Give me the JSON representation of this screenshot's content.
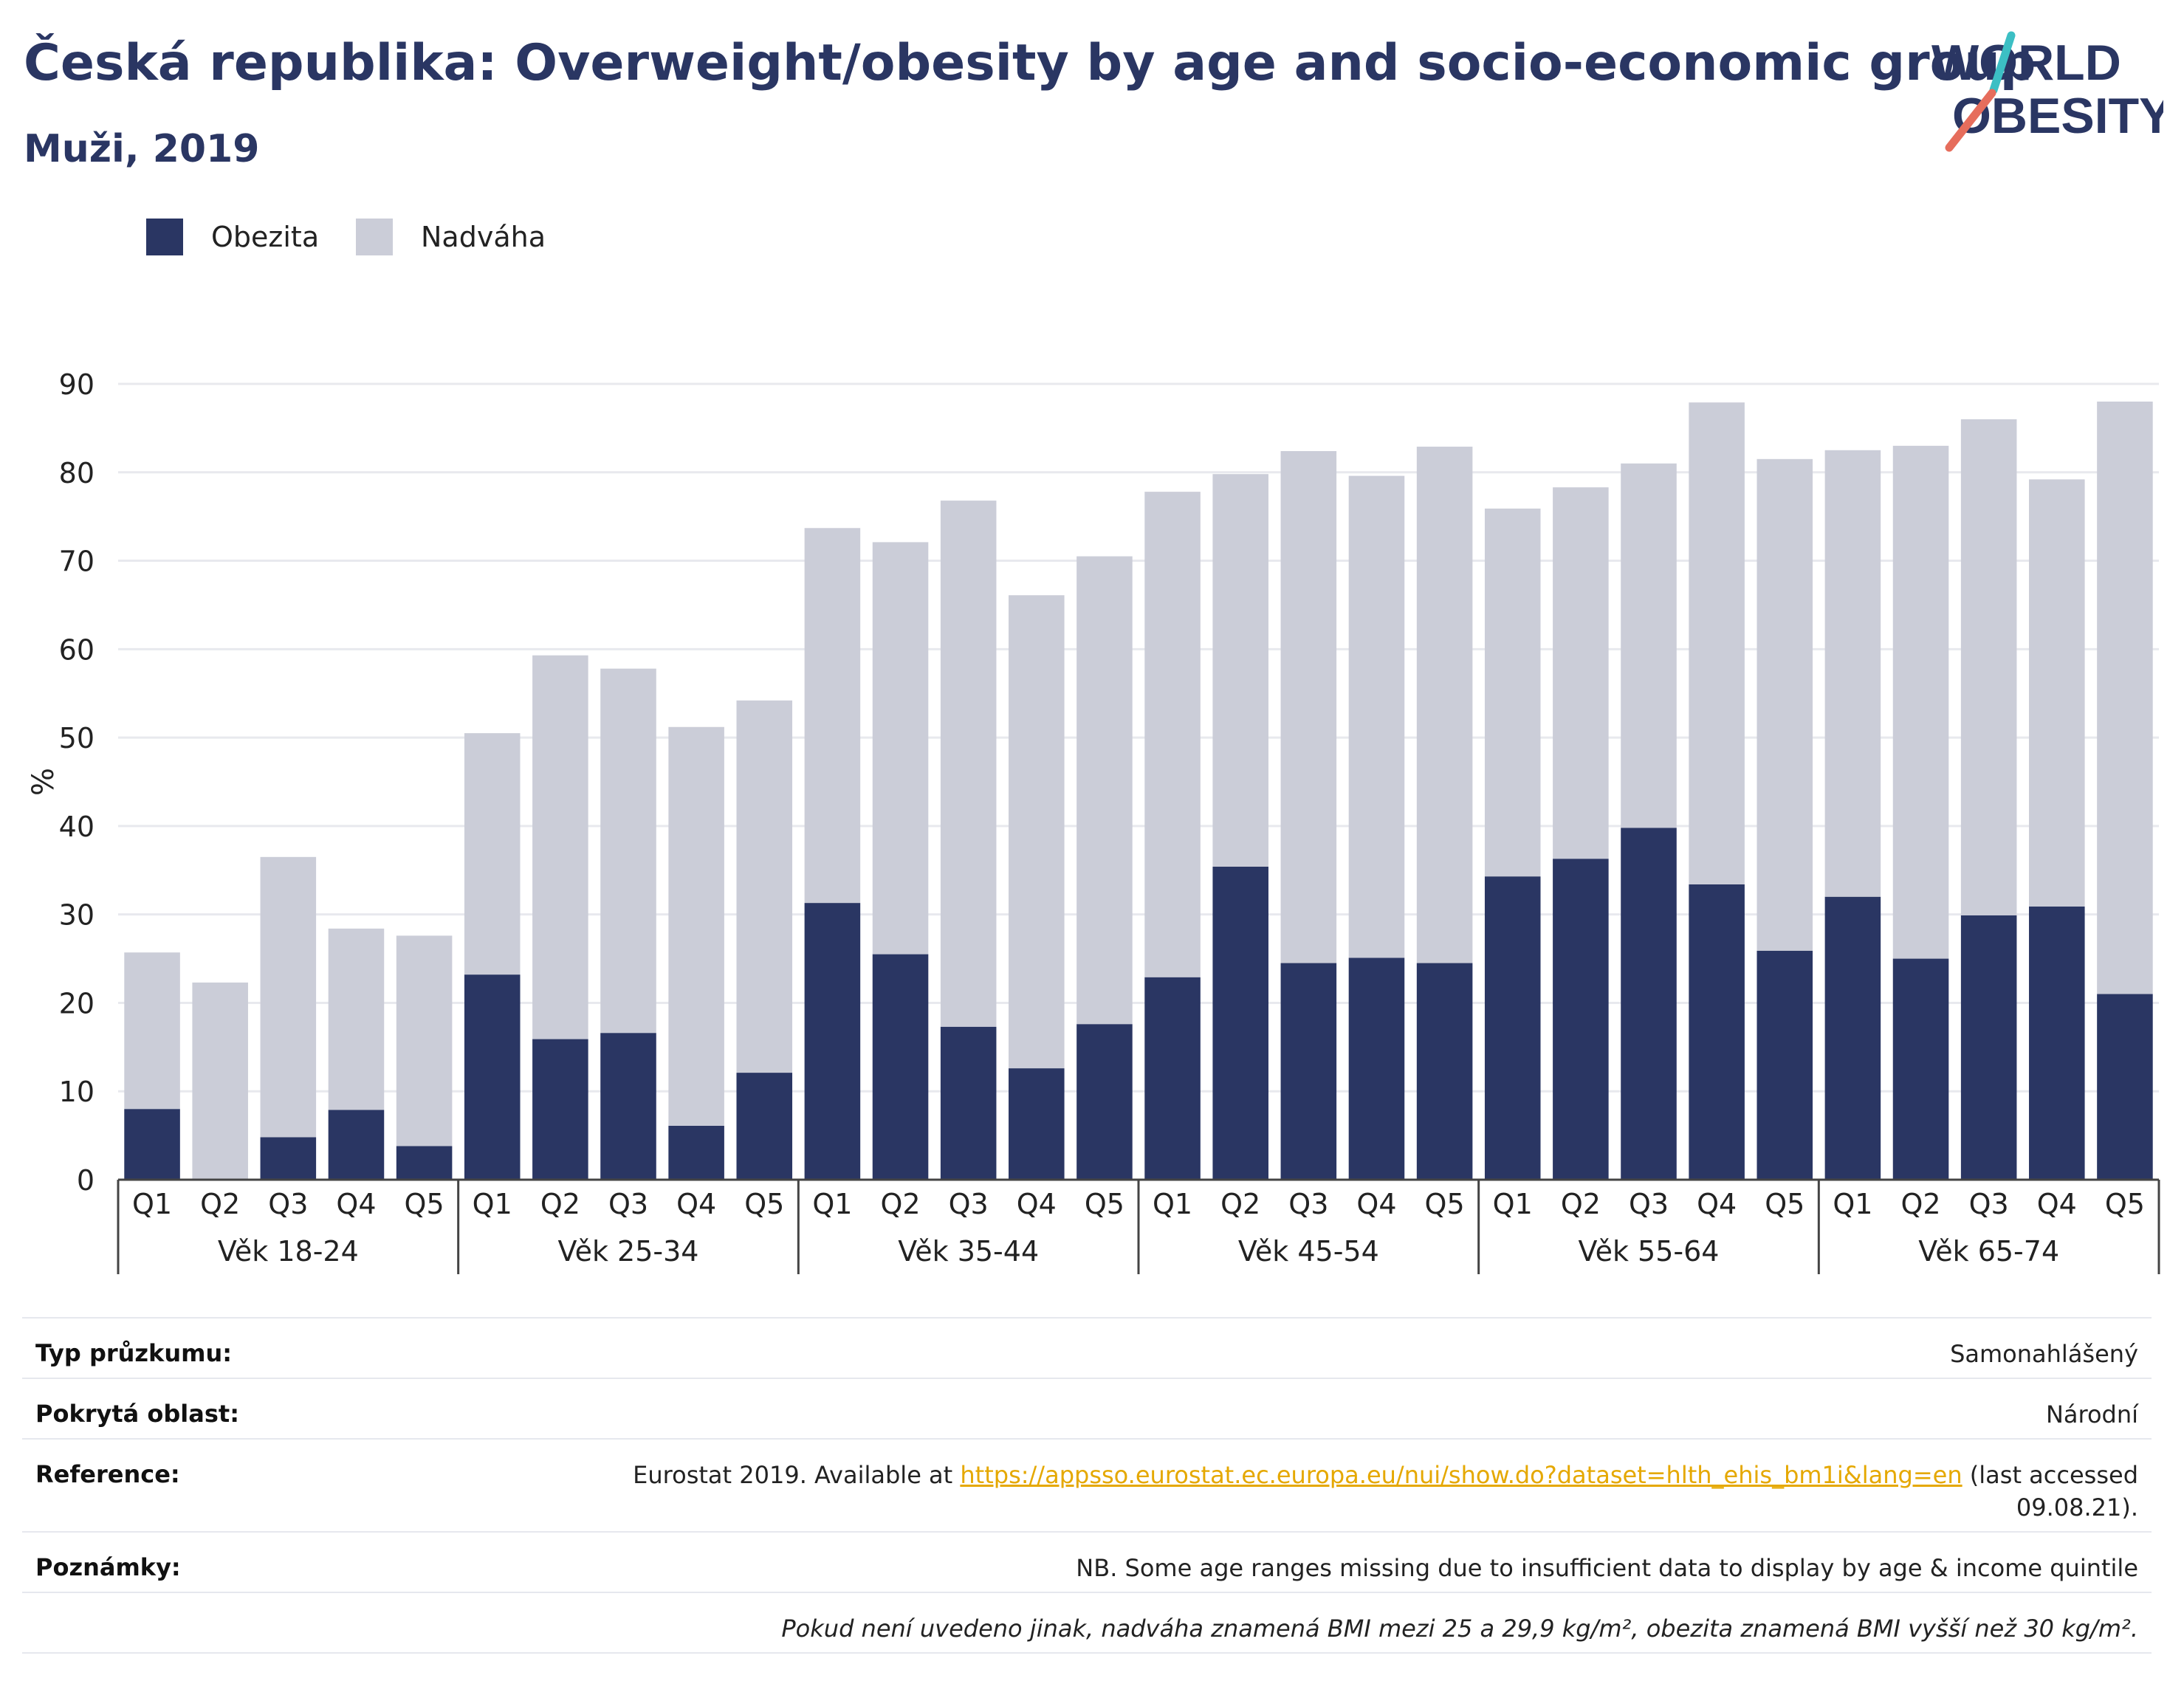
{
  "header": {
    "title": "Česká republika: Overweight/obesity by age and socio-economic group",
    "subtitle": "Muži, 2019",
    "logo_line1": "WORLD",
    "logo_line2": "OBESITY"
  },
  "colors": {
    "obesity": "#2a3663",
    "overweight": "#cbcdd8",
    "title": "#2a3663",
    "logo_slash_top": "#3cbfc4",
    "logo_slash_bottom": "#e66d5c",
    "link": "#e5a800"
  },
  "chart_data": {
    "type": "bar",
    "stacked": true,
    "ylabel": "%",
    "ylim": [
      0,
      90
    ],
    "yticks": [
      0,
      10,
      20,
      30,
      40,
      50,
      60,
      70,
      80,
      90
    ],
    "grid": true,
    "legend": "top-left",
    "groups": [
      "Věk 18-24",
      "Věk 25-34",
      "Věk 35-44",
      "Věk 45-54",
      "Věk 55-64",
      "Věk 65-74"
    ],
    "categories": [
      "Q1",
      "Q2",
      "Q3",
      "Q4",
      "Q5"
    ],
    "series": [
      {
        "name": "Obezita",
        "values": [
          [
            8.0,
            0,
            4.8,
            7.9,
            3.8
          ],
          [
            23.2,
            15.9,
            16.6,
            6.1,
            12.1
          ],
          [
            31.3,
            25.5,
            17.3,
            12.6,
            17.6
          ],
          [
            22.9,
            35.4,
            24.5,
            25.1,
            24.5
          ],
          [
            34.3,
            36.3,
            39.8,
            33.4,
            25.9
          ],
          [
            32.0,
            25.0,
            29.9,
            30.9,
            21.0
          ]
        ]
      },
      {
        "name": "Nadváha",
        "values": [
          [
            17.7,
            22.3,
            31.7,
            20.5,
            23.8
          ],
          [
            27.3,
            43.4,
            41.2,
            45.1,
            42.1
          ],
          [
            42.4,
            46.6,
            59.5,
            53.5,
            52.9
          ],
          [
            54.9,
            44.4,
            57.9,
            54.5,
            58.4
          ],
          [
            41.6,
            42.0,
            41.2,
            54.5,
            55.6
          ],
          [
            50.5,
            58.0,
            56.1,
            48.3,
            67.0
          ]
        ]
      }
    ]
  },
  "info": {
    "survey_type_label": "Typ průzkumu:",
    "survey_type_value": "Samonahlášený",
    "coverage_label": "Pokrytá oblast:",
    "coverage_value": "Národní",
    "reference_label": "Reference:",
    "reference_prefix": "Eurostat 2019. Available at",
    "reference_link": "https://appsso.eurostat.ec.europa.eu/nui/show.do?dataset=hlth_ehis_bm1i&lang=en",
    "reference_suffix": "(last accessed",
    "reference_suffix2": "09.08.21).",
    "notes_label": "Poznámky:",
    "notes_value": "NB. Some age ranges missing due to insufficient data to display by age & income quintile",
    "definition_note": "Pokud není uvedeno jinak, nadváha znamená BMI mezi 25 a 29,9 kg/m², obezita znamená BMI vyšší než 30 kg/m²."
  }
}
